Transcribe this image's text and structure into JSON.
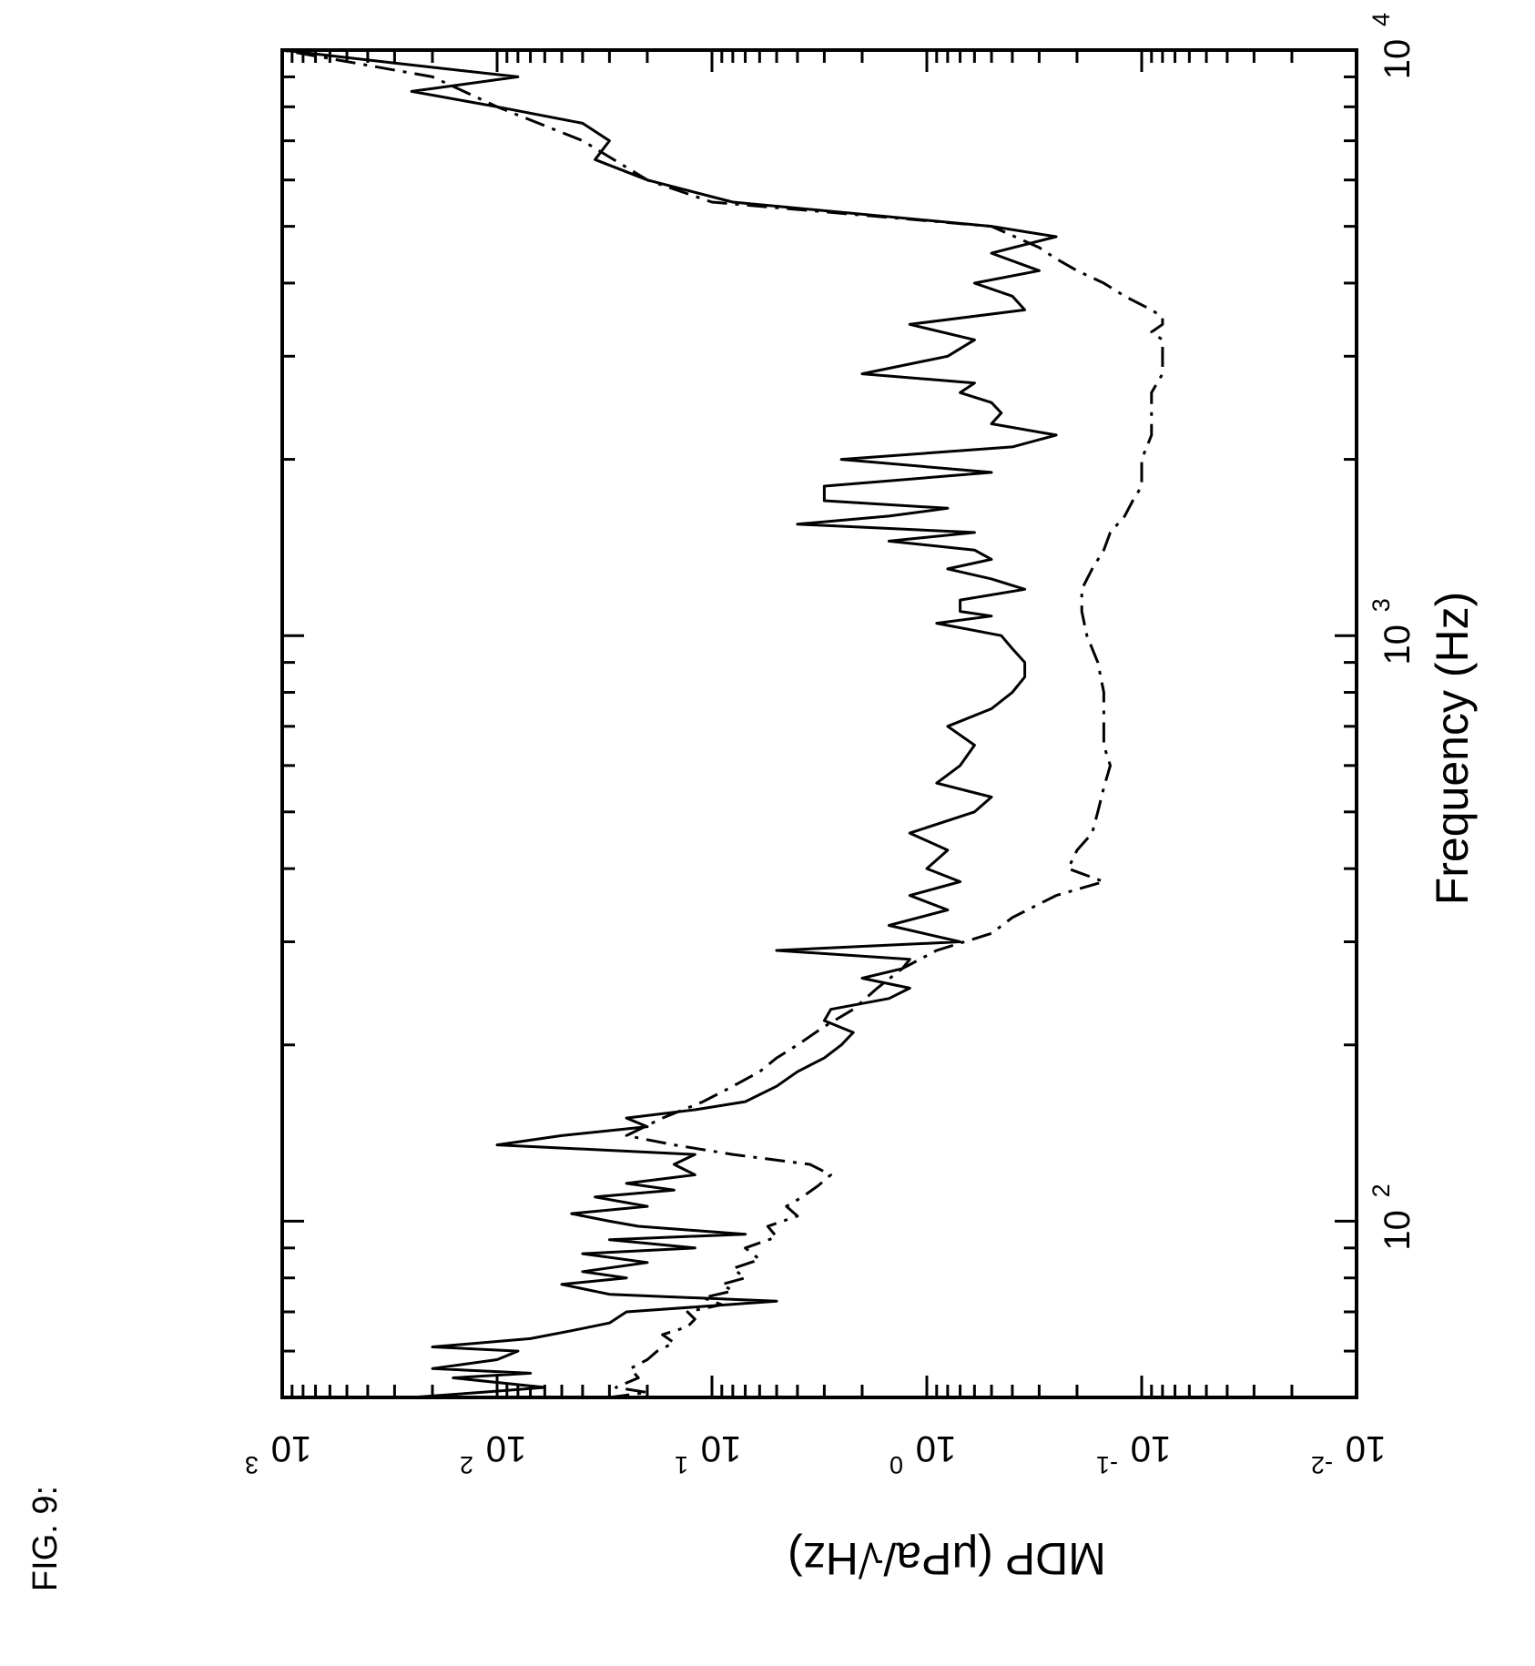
{
  "figure_label": "FIG. 9:",
  "chart_data": {
    "type": "line",
    "title": "",
    "xlabel": "Frequency (Hz)",
    "ylabel": "MDP (μPa/√Hz)",
    "x_scale": "log",
    "y_scale": "log",
    "xlim": [
      50,
      10000
    ],
    "ylim": [
      0.01,
      1000
    ],
    "grid": false,
    "x_ticks": [
      {
        "base": "10",
        "exp": "2",
        "value": 100
      },
      {
        "base": "10",
        "exp": "3",
        "value": 1000
      },
      {
        "base": "10",
        "exp": "4",
        "value": 10000
      }
    ],
    "y_ticks": [
      {
        "base": "10",
        "exp": "3",
        "value": 1000
      },
      {
        "base": "10",
        "exp": "2",
        "value": 100
      },
      {
        "base": "10",
        "exp": "1",
        "value": 10
      },
      {
        "base": "10",
        "exp": "0",
        "value": 1
      },
      {
        "base": "10",
        "exp": "-1",
        "value": 0.1
      },
      {
        "base": "10",
        "exp": "-2",
        "value": 0.01
      }
    ],
    "series": [
      {
        "style": "solid",
        "x": [
          50,
          51,
          52,
          54,
          55,
          56,
          58,
          60,
          61,
          63,
          65,
          67,
          70,
          73,
          75,
          78,
          80,
          82,
          85,
          88,
          90,
          93,
          95,
          98,
          100,
          103,
          106,
          110,
          113,
          116,
          120,
          125,
          130,
          135,
          140,
          145,
          150,
          155,
          160,
          170,
          180,
          190,
          200,
          210,
          220,
          230,
          240,
          250,
          260,
          270,
          280,
          290,
          300,
          320,
          340,
          360,
          380,
          400,
          430,
          460,
          500,
          530,
          560,
          600,
          650,
          700,
          750,
          800,
          850,
          900,
          950,
          1000,
          1050,
          1080,
          1100,
          1150,
          1200,
          1250,
          1300,
          1350,
          1400,
          1450,
          1500,
          1550,
          1600,
          1650,
          1700,
          1800,
          1900,
          2000,
          2100,
          2200,
          2300,
          2400,
          2500,
          2600,
          2700,
          2800,
          3000,
          3200,
          3400,
          3600,
          3800,
          4000,
          4200,
          4500,
          4800,
          5000,
          5500,
          6000,
          6500,
          7000,
          7500,
          8000,
          8500,
          9000,
          9500,
          10000
        ],
        "y": [
          250,
          120,
          60,
          160,
          70,
          200,
          100,
          80,
          200,
          70,
          45,
          30,
          25,
          5,
          30,
          50,
          25,
          40,
          20,
          40,
          12,
          30,
          7,
          22,
          30,
          45,
          20,
          35,
          15,
          25,
          12,
          15,
          12,
          100,
          50,
          20,
          25,
          12,
          7,
          5,
          4,
          3,
          2.5,
          2.2,
          3,
          2.8,
          1.5,
          1.2,
          2.0,
          1.3,
          1.2,
          5,
          0.7,
          1.5,
          0.8,
          1.2,
          0.7,
          1.0,
          0.8,
          1.2,
          0.6,
          0.5,
          0.9,
          0.7,
          0.6,
          0.8,
          0.5,
          0.4,
          0.35,
          0.35,
          0.4,
          0.45,
          0.9,
          0.5,
          0.7,
          0.7,
          0.35,
          0.5,
          0.8,
          0.5,
          0.6,
          1.5,
          0.6,
          4,
          1.5,
          0.8,
          3,
          3,
          0.5,
          2.5,
          0.4,
          0.25,
          0.5,
          0.45,
          0.5,
          0.7,
          0.6,
          2,
          0.8,
          0.6,
          1.2,
          0.35,
          0.4,
          0.6,
          0.3,
          0.5,
          0.25,
          0.5,
          8,
          20,
          35,
          30,
          40,
          100,
          250,
          80,
          300,
          1000
        ]
      },
      {
        "style": "dash-dot",
        "x": [
          50,
          51,
          52,
          54,
          56,
          58,
          60,
          62,
          64,
          66,
          68,
          70,
          72,
          74,
          76,
          78,
          80,
          83,
          86,
          90,
          94,
          98,
          102,
          106,
          110,
          115,
          120,
          125,
          130,
          135,
          140,
          150,
          160,
          170,
          180,
          190,
          200,
          215,
          230,
          250,
          270,
          290,
          310,
          330,
          360,
          380,
          400,
          430,
          460,
          500,
          550,
          600,
          650,
          700,
          750,
          800,
          900,
          1000,
          1100,
          1200,
          1300,
          1400,
          1500,
          1600,
          1700,
          1800,
          2000,
          2200,
          2400,
          2600,
          2800,
          3000,
          3200,
          3300,
          3400,
          3500,
          3600,
          3800,
          4000,
          4200,
          4400,
          4600,
          5000,
          5500,
          6000,
          7000,
          8000,
          9000,
          10000
        ],
        "y": [
          30,
          20,
          28,
          22,
          24,
          20,
          18,
          15,
          17,
          13,
          12,
          13,
          9,
          11,
          8,
          9,
          7,
          8,
          6,
          7,
          5,
          5.5,
          4,
          4.5,
          3.8,
          3.2,
          2.8,
          3.5,
          8,
          15,
          25,
          17,
          11,
          8,
          6,
          5,
          4,
          3,
          2.2,
          1.7,
          1.3,
          0.9,
          0.5,
          0.4,
          0.25,
          0.15,
          0.22,
          0.2,
          0.17,
          0.16,
          0.15,
          0.14,
          0.15,
          0.15,
          0.15,
          0.15,
          0.16,
          0.18,
          0.19,
          0.19,
          0.17,
          0.15,
          0.14,
          0.12,
          0.11,
          0.1,
          0.1,
          0.09,
          0.09,
          0.09,
          0.08,
          0.08,
          0.08,
          0.09,
          0.08,
          0.08,
          0.09,
          0.12,
          0.15,
          0.2,
          0.25,
          0.3,
          0.5,
          10,
          20,
          40,
          100,
          200,
          1000
        ]
      }
    ]
  }
}
